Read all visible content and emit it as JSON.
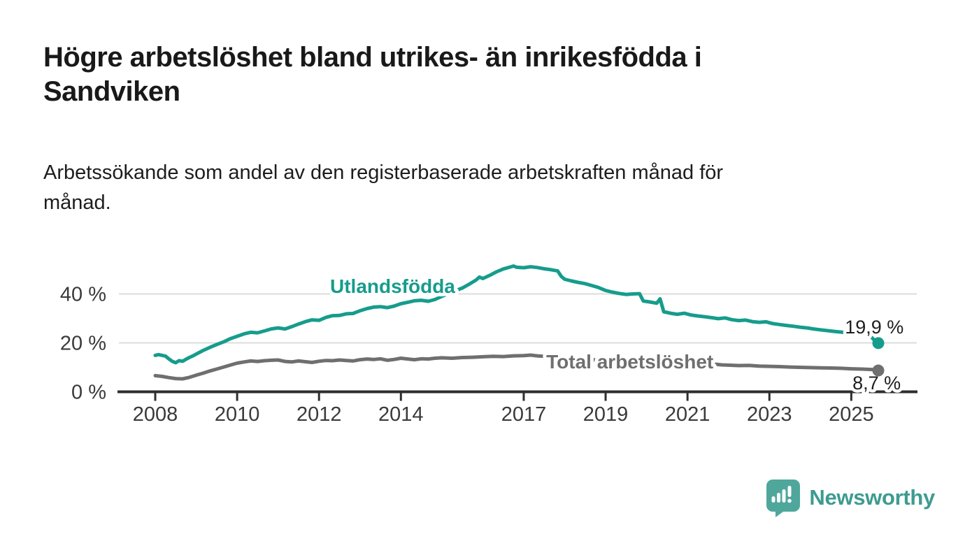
{
  "header": {
    "title_lines": [
      "Högre arbetslöshet bland utrikes- än inrikesfödda i",
      "Sandviken"
    ],
    "subtitle_lines": [
      "Arbetssökande som andel av den registerbaserade arbetskraften månad för",
      "månad."
    ]
  },
  "chart_data": {
    "type": "line",
    "title": "Högre arbetslöshet bland utrikes- än inrikesfödda i Sandviken",
    "subtitle": "Arbetssökande som andel av den registerbaserade arbetskraften månad för månad.",
    "unit": "%",
    "x_domain": [
      2008,
      2025.66
    ],
    "ylim": [
      0,
      55
    ],
    "grid": "horizontal",
    "colors": {
      "grid": "#dcdcdc",
      "axis": "#2e2e2e",
      "tick_text": "#3a3a3a",
      "halo": "#ffffff"
    },
    "yticks": [
      {
        "value": 0,
        "label": "0 %"
      },
      {
        "value": 20,
        "label": "20 %"
      },
      {
        "value": 40,
        "label": "40 %"
      }
    ],
    "xticks": [
      {
        "value": 2008,
        "label": "2008"
      },
      {
        "value": 2010,
        "label": "2010"
      },
      {
        "value": 2012,
        "label": "2012"
      },
      {
        "value": 2014,
        "label": "2014"
      },
      {
        "value": 2017,
        "label": "2017"
      },
      {
        "value": 2019,
        "label": "2019"
      },
      {
        "value": 2021,
        "label": "2021"
      },
      {
        "value": 2023,
        "label": "2023"
      },
      {
        "value": 2025,
        "label": "2025"
      }
    ],
    "series": [
      {
        "name": "Total arbetslöshet",
        "id": "total-arbetsloshet",
        "color": "#6F6F6F",
        "end_value_label": "8,7 %",
        "points": [
          [
            2008.0,
            6.6
          ],
          [
            2008.17,
            6.3
          ],
          [
            2008.33,
            5.8
          ],
          [
            2008.5,
            5.4
          ],
          [
            2008.67,
            5.3
          ],
          [
            2008.83,
            5.9
          ],
          [
            2009.0,
            6.8
          ],
          [
            2009.17,
            7.6
          ],
          [
            2009.33,
            8.5
          ],
          [
            2009.5,
            9.3
          ],
          [
            2009.67,
            10.1
          ],
          [
            2009.83,
            10.9
          ],
          [
            2010.0,
            11.7
          ],
          [
            2010.17,
            12.2
          ],
          [
            2010.33,
            12.6
          ],
          [
            2010.5,
            12.4
          ],
          [
            2010.67,
            12.7
          ],
          [
            2010.83,
            12.9
          ],
          [
            2011.0,
            13.0
          ],
          [
            2011.17,
            12.4
          ],
          [
            2011.33,
            12.2
          ],
          [
            2011.5,
            12.6
          ],
          [
            2011.67,
            12.3
          ],
          [
            2011.83,
            12.0
          ],
          [
            2012.0,
            12.5
          ],
          [
            2012.17,
            12.8
          ],
          [
            2012.33,
            12.7
          ],
          [
            2012.5,
            13.0
          ],
          [
            2012.67,
            12.8
          ],
          [
            2012.83,
            12.6
          ],
          [
            2013.0,
            13.1
          ],
          [
            2013.17,
            13.4
          ],
          [
            2013.33,
            13.2
          ],
          [
            2013.5,
            13.5
          ],
          [
            2013.67,
            12.9
          ],
          [
            2013.83,
            13.2
          ],
          [
            2014.0,
            13.7
          ],
          [
            2014.17,
            13.4
          ],
          [
            2014.33,
            13.1
          ],
          [
            2014.5,
            13.5
          ],
          [
            2014.67,
            13.4
          ],
          [
            2014.83,
            13.7
          ],
          [
            2015.0,
            13.9
          ],
          [
            2015.25,
            13.7
          ],
          [
            2015.5,
            14.0
          ],
          [
            2015.75,
            14.1
          ],
          [
            2016.0,
            14.3
          ],
          [
            2016.25,
            14.5
          ],
          [
            2016.5,
            14.4
          ],
          [
            2016.75,
            14.7
          ],
          [
            2017.0,
            14.8
          ],
          [
            2017.17,
            15.0
          ],
          [
            2017.33,
            14.7
          ],
          [
            2017.5,
            14.5
          ],
          [
            2017.75,
            14.2
          ],
          [
            2018.0,
            13.9
          ],
          [
            2018.33,
            13.5
          ],
          [
            2018.67,
            13.1
          ],
          [
            2019.0,
            12.9
          ],
          [
            2019.33,
            12.7
          ],
          [
            2019.67,
            12.8
          ],
          [
            2020.0,
            13.0
          ],
          [
            2020.33,
            13.2
          ],
          [
            2020.67,
            12.7
          ],
          [
            2021.0,
            12.3
          ],
          [
            2021.33,
            11.8
          ],
          [
            2021.67,
            11.3
          ],
          [
            2021.83,
            11.0
          ],
          [
            2022.0,
            10.9
          ],
          [
            2022.25,
            10.7
          ],
          [
            2022.5,
            10.8
          ],
          [
            2022.75,
            10.5
          ],
          [
            2023.0,
            10.4
          ],
          [
            2023.25,
            10.3
          ],
          [
            2023.5,
            10.1
          ],
          [
            2023.75,
            10.0
          ],
          [
            2024.0,
            9.9
          ],
          [
            2024.25,
            9.8
          ],
          [
            2024.5,
            9.7
          ],
          [
            2024.75,
            9.6
          ],
          [
            2025.0,
            9.4
          ],
          [
            2025.25,
            9.3
          ],
          [
            2025.5,
            9.1
          ],
          [
            2025.66,
            8.7
          ]
        ]
      },
      {
        "name": "Utlandsfödda",
        "id": "utlandsfodda",
        "color": "#169C8C",
        "end_value_label": "19,9 %",
        "points": [
          [
            2008.0,
            14.9
          ],
          [
            2008.08,
            15.2
          ],
          [
            2008.17,
            14.9
          ],
          [
            2008.25,
            14.6
          ],
          [
            2008.33,
            13.5
          ],
          [
            2008.42,
            12.4
          ],
          [
            2008.5,
            11.9
          ],
          [
            2008.58,
            12.7
          ],
          [
            2008.67,
            12.5
          ],
          [
            2008.75,
            13.3
          ],
          [
            2008.83,
            14.0
          ],
          [
            2008.92,
            14.7
          ],
          [
            2009.0,
            15.4
          ],
          [
            2009.17,
            16.9
          ],
          [
            2009.33,
            18.1
          ],
          [
            2009.5,
            19.3
          ],
          [
            2009.67,
            20.4
          ],
          [
            2009.83,
            21.7
          ],
          [
            2010.0,
            22.7
          ],
          [
            2010.17,
            23.7
          ],
          [
            2010.33,
            24.3
          ],
          [
            2010.5,
            24.1
          ],
          [
            2010.67,
            24.9
          ],
          [
            2010.83,
            25.7
          ],
          [
            2011.0,
            26.1
          ],
          [
            2011.17,
            25.7
          ],
          [
            2011.33,
            26.6
          ],
          [
            2011.5,
            27.7
          ],
          [
            2011.67,
            28.7
          ],
          [
            2011.83,
            29.4
          ],
          [
            2012.0,
            29.2
          ],
          [
            2012.17,
            30.4
          ],
          [
            2012.33,
            31.1
          ],
          [
            2012.5,
            31.2
          ],
          [
            2012.67,
            31.9
          ],
          [
            2012.83,
            32.0
          ],
          [
            2013.0,
            33.1
          ],
          [
            2013.17,
            34.0
          ],
          [
            2013.33,
            34.6
          ],
          [
            2013.5,
            34.8
          ],
          [
            2013.67,
            34.4
          ],
          [
            2013.83,
            35.0
          ],
          [
            2014.0,
            36.0
          ],
          [
            2014.17,
            36.6
          ],
          [
            2014.33,
            37.2
          ],
          [
            2014.5,
            37.4
          ],
          [
            2014.67,
            37.0
          ],
          [
            2014.83,
            37.7
          ],
          [
            2015.0,
            39.0
          ],
          [
            2015.17,
            40.2
          ],
          [
            2015.33,
            41.3
          ],
          [
            2015.5,
            42.4
          ],
          [
            2015.67,
            44.0
          ],
          [
            2015.83,
            45.6
          ],
          [
            2015.92,
            46.9
          ],
          [
            2016.0,
            46.3
          ],
          [
            2016.17,
            47.6
          ],
          [
            2016.33,
            49.0
          ],
          [
            2016.5,
            50.2
          ],
          [
            2016.67,
            51.0
          ],
          [
            2016.75,
            51.4
          ],
          [
            2016.83,
            50.9
          ],
          [
            2017.0,
            50.7
          ],
          [
            2017.17,
            51.1
          ],
          [
            2017.33,
            50.8
          ],
          [
            2017.5,
            50.3
          ],
          [
            2017.67,
            49.9
          ],
          [
            2017.83,
            49.4
          ],
          [
            2017.92,
            47.1
          ],
          [
            2018.0,
            46.0
          ],
          [
            2018.17,
            45.3
          ],
          [
            2018.33,
            44.7
          ],
          [
            2018.5,
            44.2
          ],
          [
            2018.67,
            43.4
          ],
          [
            2018.83,
            42.6
          ],
          [
            2019.0,
            41.4
          ],
          [
            2019.17,
            40.7
          ],
          [
            2019.33,
            40.2
          ],
          [
            2019.5,
            39.8
          ],
          [
            2019.67,
            40.0
          ],
          [
            2019.83,
            40.1
          ],
          [
            2019.92,
            37.1
          ],
          [
            2020.08,
            36.7
          ],
          [
            2020.25,
            36.2
          ],
          [
            2020.33,
            38.0
          ],
          [
            2020.42,
            32.7
          ],
          [
            2020.58,
            32.1
          ],
          [
            2020.75,
            31.7
          ],
          [
            2020.92,
            32.1
          ],
          [
            2021.08,
            31.4
          ],
          [
            2021.25,
            31.0
          ],
          [
            2021.42,
            30.7
          ],
          [
            2021.58,
            30.3
          ],
          [
            2021.75,
            29.9
          ],
          [
            2021.92,
            30.2
          ],
          [
            2022.08,
            29.5
          ],
          [
            2022.25,
            29.1
          ],
          [
            2022.42,
            29.3
          ],
          [
            2022.58,
            28.7
          ],
          [
            2022.75,
            28.4
          ],
          [
            2022.92,
            28.6
          ],
          [
            2023.08,
            27.9
          ],
          [
            2023.25,
            27.5
          ],
          [
            2023.42,
            27.1
          ],
          [
            2023.58,
            26.8
          ],
          [
            2023.75,
            26.4
          ],
          [
            2023.92,
            26.1
          ],
          [
            2024.08,
            25.7
          ],
          [
            2024.25,
            25.3
          ],
          [
            2024.42,
            25.0
          ],
          [
            2024.58,
            24.7
          ],
          [
            2024.75,
            24.4
          ],
          [
            2024.92,
            24.1
          ],
          [
            2025.08,
            23.9
          ],
          [
            2025.25,
            24.0
          ],
          [
            2025.42,
            23.4
          ],
          [
            2025.5,
            22.2
          ],
          [
            2025.58,
            20.8
          ],
          [
            2025.66,
            19.9
          ]
        ]
      }
    ],
    "series_labels": [
      {
        "text": "Utlandsfödda",
        "t": 2012.27,
        "v": 40.5,
        "color": "#169C8C"
      },
      {
        "text": "Total arbetslöshet",
        "t": 2017.55,
        "v": 9.55,
        "color": "#6F6F6F"
      }
    ],
    "value_labels": [
      {
        "text": "19,9 %",
        "t": 2026.28,
        "v": 23.8,
        "color": "#1f1f1f"
      },
      {
        "text": "8,7 %",
        "t": 2026.21,
        "v": 0.95,
        "color": "#1f1f1f"
      }
    ],
    "legend_position": "inline-labels"
  },
  "footer": {
    "brand": "Newsworthy",
    "logo_icon": "speech-bubble-bar-chart",
    "brand_color": "#3E9B91",
    "icon_color": "#4FA79C"
  }
}
